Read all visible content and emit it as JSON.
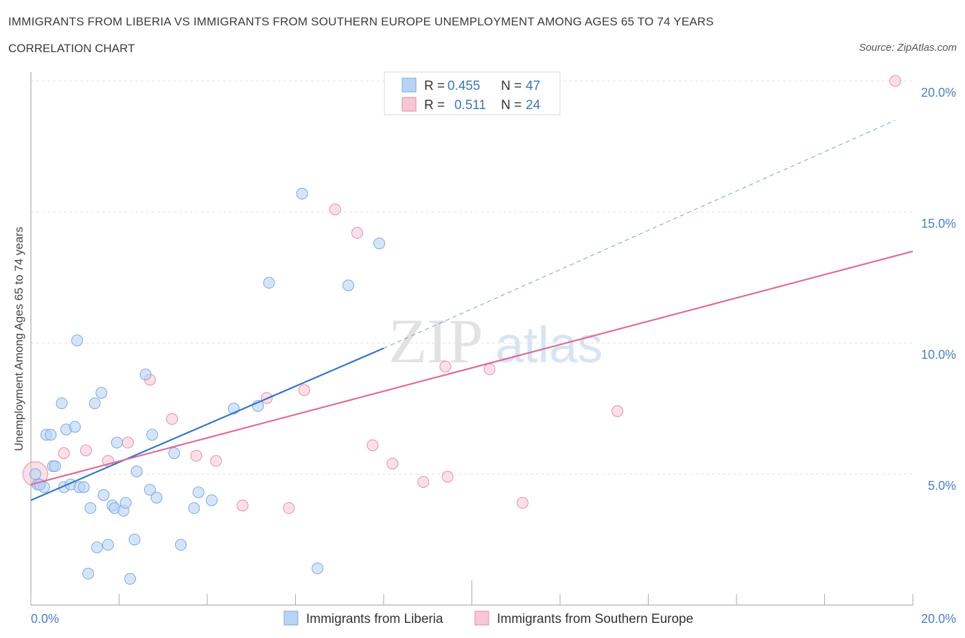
{
  "title": "IMMIGRANTS FROM LIBERIA VS IMMIGRANTS FROM SOUTHERN EUROPE UNEMPLOYMENT AMONG AGES 65 TO 74 YEARS",
  "subtitle": "CORRELATION CHART",
  "source": "Source: ZipAtlas.com",
  "watermark": {
    "zip": "ZIP",
    "atlas": "atlas"
  },
  "colors": {
    "liberia_fill": "#b9d3f5",
    "liberia_stroke": "#7aa7e0",
    "liberia_line": "#2f74cf",
    "europe_fill": "#f8c6d4",
    "europe_stroke": "#e88aa6",
    "europe_line": "#e06a93",
    "grid": "#dddddd",
    "axis_text": "#4a7fc8"
  },
  "legend": {
    "r_label": "R =",
    "n_label": "N =",
    "rows": [
      {
        "r": "0.455",
        "n": "47"
      },
      {
        "r": "0.511",
        "n": "24"
      }
    ]
  },
  "chart_data": {
    "type": "scatter",
    "xlabel": "",
    "ylabel": "Unemployment Among Ages 65 to 74 years",
    "xlim": [
      0,
      20
    ],
    "ylim": [
      0,
      20
    ],
    "x_tick_labels": [
      "0.0%",
      "20.0%"
    ],
    "y_ticks": [
      5,
      10,
      15,
      20
    ],
    "y_tick_labels": [
      "5.0%",
      "10.0%",
      "15.0%",
      "20.0%"
    ],
    "grid": true,
    "legend_position": "top-center",
    "series": [
      {
        "name": "Immigrants from Liberia",
        "points": [
          [
            0.1,
            5.0
          ],
          [
            0.15,
            4.6
          ],
          [
            0.3,
            4.5
          ],
          [
            0.35,
            6.5
          ],
          [
            0.45,
            6.5
          ],
          [
            0.5,
            5.3
          ],
          [
            0.55,
            5.3
          ],
          [
            0.7,
            7.7
          ],
          [
            0.75,
            4.5
          ],
          [
            0.8,
            6.7
          ],
          [
            0.9,
            4.6
          ],
          [
            1.0,
            6.8
          ],
          [
            1.05,
            10.1
          ],
          [
            1.1,
            4.5
          ],
          [
            1.2,
            4.5
          ],
          [
            1.35,
            3.7
          ],
          [
            1.45,
            7.7
          ],
          [
            1.5,
            2.2
          ],
          [
            1.6,
            8.1
          ],
          [
            1.65,
            4.2
          ],
          [
            1.3,
            1.2
          ],
          [
            1.75,
            2.3
          ],
          [
            1.85,
            3.8
          ],
          [
            1.9,
            3.7
          ],
          [
            1.95,
            6.2
          ],
          [
            2.1,
            3.6
          ],
          [
            2.15,
            3.9
          ],
          [
            2.25,
            1.0
          ],
          [
            2.35,
            2.5
          ],
          [
            2.4,
            5.1
          ],
          [
            2.6,
            8.8
          ],
          [
            2.7,
            4.4
          ],
          [
            2.75,
            6.5
          ],
          [
            2.85,
            4.1
          ],
          [
            3.25,
            5.8
          ],
          [
            3.4,
            2.3
          ],
          [
            3.7,
            3.7
          ],
          [
            3.8,
            4.3
          ],
          [
            4.1,
            4.0
          ],
          [
            4.6,
            7.5
          ],
          [
            5.15,
            7.6
          ],
          [
            5.4,
            12.3
          ],
          [
            6.15,
            15.7
          ],
          [
            6.5,
            1.4
          ],
          [
            7.2,
            12.2
          ],
          [
            7.9,
            13.8
          ],
          [
            0.2,
            4.6
          ]
        ]
      },
      {
        "name": "Immigrants from Southern Europe",
        "points": [
          [
            0.1,
            5.0
          ],
          [
            0.75,
            5.8
          ],
          [
            1.25,
            5.9
          ],
          [
            1.75,
            5.5
          ],
          [
            2.2,
            6.2
          ],
          [
            2.7,
            8.6
          ],
          [
            3.2,
            7.1
          ],
          [
            3.75,
            5.7
          ],
          [
            4.2,
            5.5
          ],
          [
            4.8,
            3.8
          ],
          [
            5.35,
            7.9
          ],
          [
            5.85,
            3.7
          ],
          [
            6.2,
            8.2
          ],
          [
            6.9,
            15.1
          ],
          [
            7.4,
            14.2
          ],
          [
            7.75,
            6.1
          ],
          [
            8.2,
            5.4
          ],
          [
            8.9,
            4.7
          ],
          [
            9.4,
            9.1
          ],
          [
            9.45,
            4.9
          ],
          [
            10.4,
            9.0
          ],
          [
            11.15,
            3.9
          ],
          [
            13.3,
            7.4
          ],
          [
            19.6,
            20.0
          ]
        ]
      }
    ],
    "trend_lines": [
      {
        "series": "Immigrants from Liberia",
        "x": [
          0,
          8
        ],
        "y": [
          4.0,
          9.8
        ],
        "dashed_extension_to": [
          19.6,
          18.5
        ]
      },
      {
        "series": "Immigrants from Southern Europe",
        "x": [
          0,
          20
        ],
        "y": [
          4.6,
          13.5
        ]
      }
    ]
  }
}
